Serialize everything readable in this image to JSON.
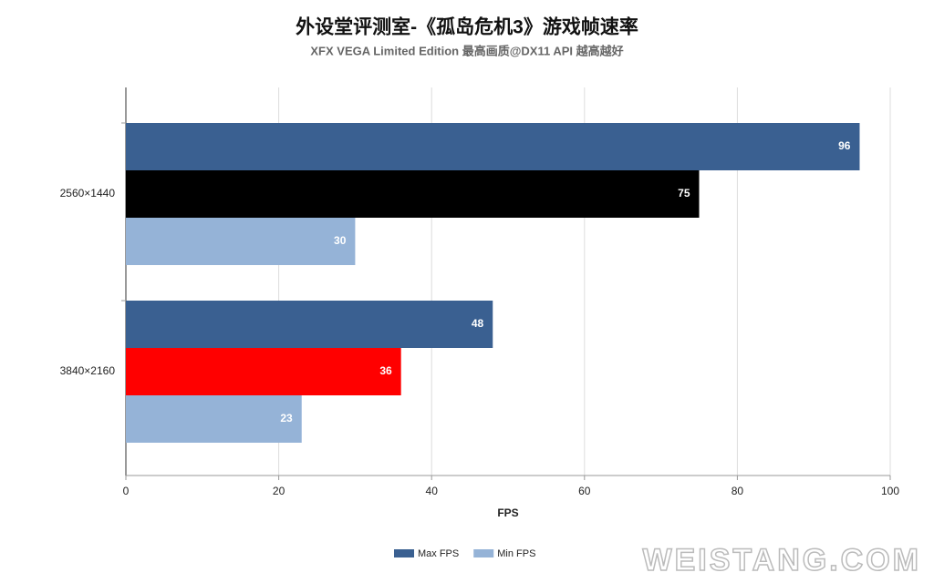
{
  "chart_data": {
    "type": "hbar",
    "title": "外设堂评测室-《孤岛危机3》游戏帧速率",
    "subtitle": "XFX VEGA Limited Edition 最高画质@DX11 API 越高越好",
    "x_label": "FPS",
    "categories": [
      "2560×1440",
      "3840×2160"
    ],
    "series": [
      {
        "name": "Max FPS",
        "color": "#3a6091",
        "values": [
          96,
          48
        ]
      },
      {
        "colors": [
          "#000000",
          "#ff0000"
        ],
        "values": [
          75,
          36
        ]
      },
      {
        "name": "Min FPS",
        "color": "#95b3d7",
        "values": [
          30,
          23
        ]
      }
    ],
    "xlim": [
      0,
      100
    ],
    "xticks": [
      0,
      20,
      40,
      60,
      80,
      100
    ],
    "grid": true,
    "legend": "bottom",
    "watermark": "WEISTANG.COM"
  }
}
